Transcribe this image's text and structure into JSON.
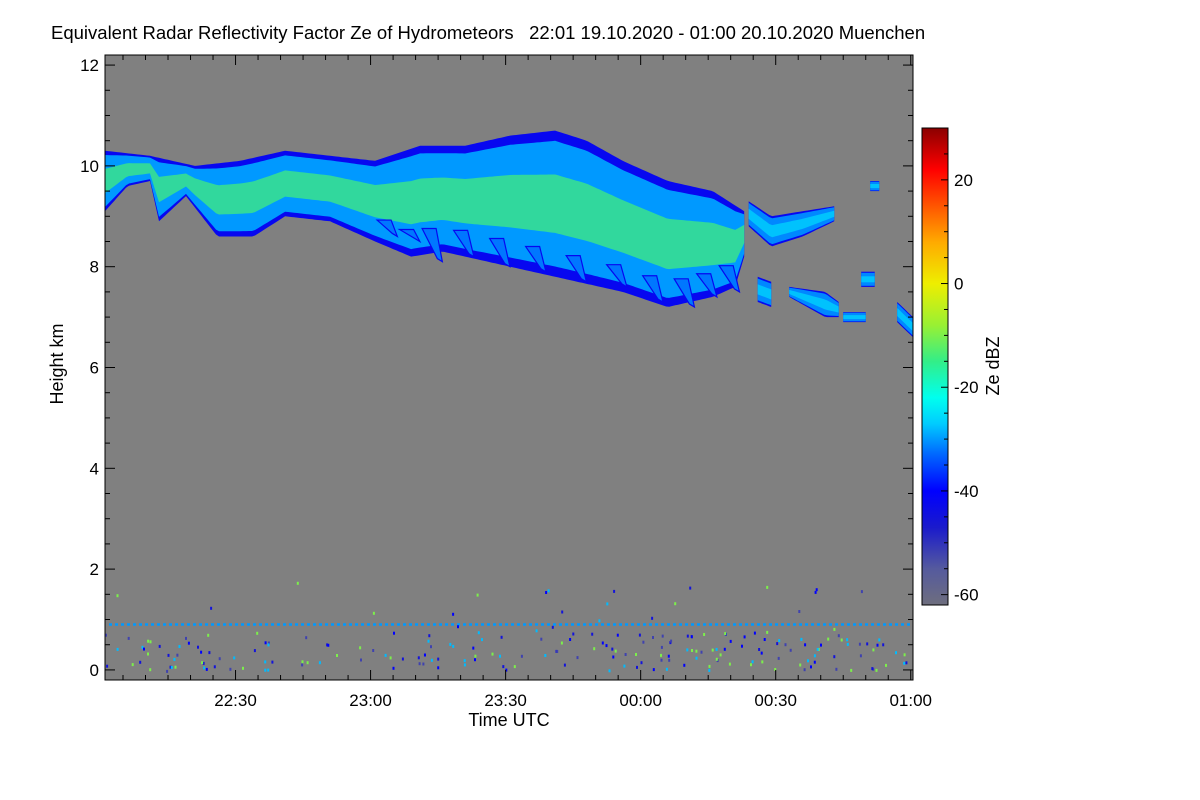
{
  "chart_data": {
    "type": "heatmap",
    "title": "Equivalent Radar Reflectivity Factor Ze of Hydrometeors   22:01 19.10.2020 - 01:00 20.10.2020 Muenchen",
    "xlabel": "Time UTC",
    "ylabel": "Height km",
    "colorbar_label": "Ze dBZ",
    "x_tick_labels": [
      "22:30",
      "23:00",
      "23:30",
      "00:00",
      "00:30",
      "01:00"
    ],
    "x_tick_minutes": [
      29,
      59,
      89,
      119,
      149,
      179
    ],
    "x_minor_step_minutes": 5,
    "xlim_minutes": [
      0,
      179.5
    ],
    "ylim_km": [
      -0.2,
      12.2
    ],
    "y_ticks": [
      0,
      2,
      4,
      6,
      8,
      10,
      12
    ],
    "y_minor_step": 0.5,
    "colorbar_range": [
      -62,
      30
    ],
    "colorbar_ticks": [
      20,
      0,
      -20,
      -40,
      -60
    ],
    "colorbar_minor_step": 5,
    "background_color": "#808080",
    "colormap": [
      {
        "value": -62,
        "color": "#6e6e7e"
      },
      {
        "value": -55,
        "color": "#555a9e"
      },
      {
        "value": -47,
        "color": "#1a1acc"
      },
      {
        "value": -40,
        "color": "#0000ff"
      },
      {
        "value": -33,
        "color": "#0066ff"
      },
      {
        "value": -27,
        "color": "#00ccff"
      },
      {
        "value": -22,
        "color": "#00ffee"
      },
      {
        "value": -15,
        "color": "#33ee88"
      },
      {
        "value": -8,
        "color": "#99f033"
      },
      {
        "value": 0,
        "color": "#eeee00"
      },
      {
        "value": 8,
        "color": "#ffaa00"
      },
      {
        "value": 15,
        "color": "#ff5500"
      },
      {
        "value": 22,
        "color": "#ff0000"
      },
      {
        "value": 30,
        "color": "#8b0000"
      }
    ],
    "cloud_layers": [
      {
        "name": "main-ice-cloud",
        "edge_dbz": -42,
        "mid_dbz": -30,
        "core_dbz": -14,
        "top_km": [
          [
            0,
            10.3
          ],
          [
            10,
            10.2
          ],
          [
            20,
            10.0
          ],
          [
            30,
            10.1
          ],
          [
            40,
            10.3
          ],
          [
            50,
            10.2
          ],
          [
            60,
            10.1
          ],
          [
            70,
            10.4
          ],
          [
            80,
            10.4
          ],
          [
            90,
            10.6
          ],
          [
            100,
            10.7
          ],
          [
            107,
            10.5
          ],
          [
            115,
            10.1
          ],
          [
            125,
            9.7
          ],
          [
            135,
            9.5
          ],
          [
            142,
            9.1
          ]
        ],
        "base_km": [
          [
            0,
            9.1
          ],
          [
            5,
            9.6
          ],
          [
            10,
            9.7
          ],
          [
            12,
            8.9
          ],
          [
            18,
            9.4
          ],
          [
            25,
            8.6
          ],
          [
            33,
            8.6
          ],
          [
            40,
            9.0
          ],
          [
            50,
            8.9
          ],
          [
            60,
            8.5
          ],
          [
            68,
            8.2
          ],
          [
            75,
            8.3
          ],
          [
            85,
            8.1
          ],
          [
            95,
            7.9
          ],
          [
            105,
            7.7
          ],
          [
            115,
            7.5
          ],
          [
            125,
            7.2
          ],
          [
            135,
            7.4
          ],
          [
            140,
            7.6
          ],
          [
            142,
            8.2
          ]
        ]
      },
      {
        "name": "patch-a",
        "edge_dbz": -42,
        "mid_dbz": -31,
        "core_dbz": -26,
        "top_km": [
          [
            143,
            9.3
          ],
          [
            148,
            9.0
          ],
          [
            155,
            9.1
          ],
          [
            162,
            9.2
          ]
        ],
        "base_km": [
          [
            143,
            8.8
          ],
          [
            148,
            8.4
          ],
          [
            155,
            8.6
          ],
          [
            162,
            8.9
          ]
        ]
      },
      {
        "name": "patch-b",
        "edge_dbz": -42,
        "mid_dbz": -31,
        "core_dbz": -26,
        "top_km": [
          [
            145,
            7.8
          ],
          [
            148,
            7.7
          ]
        ],
        "base_km": [
          [
            145,
            7.3
          ],
          [
            148,
            7.2
          ]
        ]
      },
      {
        "name": "patch-c",
        "edge_dbz": -42,
        "mid_dbz": -31,
        "core_dbz": -26,
        "top_km": [
          [
            152,
            7.6
          ],
          [
            160,
            7.5
          ],
          [
            163,
            7.3
          ]
        ],
        "base_km": [
          [
            152,
            7.4
          ],
          [
            160,
            7.0
          ],
          [
            163,
            7.0
          ]
        ]
      },
      {
        "name": "patch-d",
        "edge_dbz": -42,
        "mid_dbz": -31,
        "core_dbz": -26,
        "top_km": [
          [
            164,
            7.1
          ],
          [
            169,
            7.1
          ]
        ],
        "base_km": [
          [
            164,
            6.9
          ],
          [
            169,
            6.9
          ]
        ]
      },
      {
        "name": "patch-e",
        "edge_dbz": -42,
        "mid_dbz": -31,
        "core_dbz": -26,
        "top_km": [
          [
            168,
            7.9
          ],
          [
            171,
            7.9
          ]
        ],
        "base_km": [
          [
            168,
            7.6
          ],
          [
            171,
            7.6
          ]
        ]
      },
      {
        "name": "patch-f",
        "edge_dbz": -42,
        "mid_dbz": -31,
        "core_dbz": -26,
        "top_km": [
          [
            170,
            9.7
          ],
          [
            172,
            9.7
          ]
        ],
        "base_km": [
          [
            170,
            9.5
          ],
          [
            172,
            9.5
          ]
        ]
      },
      {
        "name": "patch-g",
        "edge_dbz": -42,
        "mid_dbz": -31,
        "core_dbz": -26,
        "top_km": [
          [
            176,
            7.3
          ],
          [
            179.5,
            7.0
          ]
        ],
        "base_km": [
          [
            176,
            6.9
          ],
          [
            179.5,
            6.6
          ]
        ]
      }
    ],
    "fallstreaks": [
      {
        "minute": 62,
        "base_km": 8.6
      },
      {
        "minute": 67,
        "base_km": 8.5
      },
      {
        "minute": 72,
        "base_km": 8.1
      },
      {
        "minute": 79,
        "base_km": 8.2
      },
      {
        "minute": 87,
        "base_km": 8.0
      },
      {
        "minute": 95,
        "base_km": 7.9
      },
      {
        "minute": 104,
        "base_km": 7.7
      },
      {
        "minute": 113,
        "base_km": 7.6
      },
      {
        "minute": 121,
        "base_km": 7.3
      },
      {
        "minute": 128,
        "base_km": 7.2
      },
      {
        "minute": 133,
        "base_km": 7.4
      },
      {
        "minute": 138,
        "base_km": 7.5
      }
    ],
    "clutter_band": {
      "height_km": 0.9,
      "dbz": -30
    },
    "noise_layer_km": [
      0,
      1.3
    ]
  }
}
